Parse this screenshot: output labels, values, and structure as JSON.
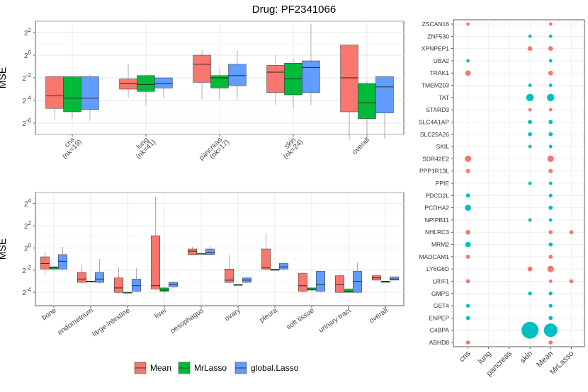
{
  "title": "Drug: PF2341066",
  "colors": {
    "Mean": "#F8766D",
    "MrLasso": "#00BA38",
    "global.Lasso": "#619CFF",
    "dot_red": "#F8766D",
    "dot_teal": "#00BFC4"
  },
  "legend": [
    {
      "label": "Mean",
      "color": "#F8766D"
    },
    {
      "label": "MrLasso",
      "color": "#00BA38"
    },
    {
      "label": "global.Lasso",
      "color": "#619CFF"
    }
  ],
  "chart_data": [
    {
      "type": "boxplot",
      "ylabel": "MSE",
      "yscale": "log2",
      "ylim_exp": [
        -7,
        3
      ],
      "yticks": [
        {
          "exp": -6,
          "label": "2-6"
        },
        {
          "exp": -4,
          "label": "2-4"
        },
        {
          "exp": -2,
          "label": "2-2"
        },
        {
          "exp": 0,
          "label": "20"
        },
        {
          "exp": 2,
          "label": "22"
        }
      ],
      "categories": [
        {
          "label": "cns",
          "sub": "(nk=19)"
        },
        {
          "label": "lung",
          "sub": "(nk=41)"
        },
        {
          "label": "pancreas",
          "sub": "(nk=17)"
        },
        {
          "label": "skin",
          "sub": "(nk=24)"
        },
        {
          "label": "overall",
          "sub": ""
        }
      ],
      "series": [
        {
          "name": "Mean",
          "boxes": [
            {
              "wlo": -5.7,
              "q1": -4.7,
              "med": -3.6,
              "q3": -1.9,
              "whi": -1.8
            },
            {
              "wlo": -3.8,
              "q1": -3.0,
              "med": -2.5,
              "q3": -2.1,
              "whi": -0.8
            },
            {
              "wlo": -3.9,
              "q1": -2.4,
              "med": -0.8,
              "q3": 0.0,
              "whi": 0.4
            },
            {
              "wlo": -4.4,
              "q1": -3.3,
              "med": -1.5,
              "q3": -0.9,
              "whi": 0.0
            },
            {
              "wlo": -7.5,
              "q1": -5.0,
              "med": -2.0,
              "q3": 0.9,
              "whi": 0.9
            }
          ]
        },
        {
          "name": "MrLasso",
          "boxes": [
            {
              "wlo": -5.6,
              "q1": -5.0,
              "med": -3.8,
              "q3": -1.9,
              "whi": -1.9
            },
            {
              "wlo": -4.4,
              "q1": -3.2,
              "med": -2.6,
              "q3": -1.8,
              "whi": -1.8
            },
            {
              "wlo": -3.9,
              "q1": -2.9,
              "med": -2.0,
              "q3": -1.8,
              "whi": -1.2
            },
            {
              "wlo": -4.7,
              "q1": -3.5,
              "med": -2.1,
              "q3": -0.7,
              "whi": -0.3
            },
            {
              "wlo": -7.4,
              "q1": -5.6,
              "med": -4.2,
              "q3": -2.5,
              "whi": -2.3
            }
          ]
        },
        {
          "name": "global.Lasso",
          "boxes": [
            {
              "wlo": -5.8,
              "q1": -4.8,
              "med": -3.8,
              "q3": -1.9,
              "whi": -1.7
            },
            {
              "wlo": -3.8,
              "q1": -2.9,
              "med": -2.5,
              "q3": -2.0,
              "whi": -2.0
            },
            {
              "wlo": -3.9,
              "q1": -2.7,
              "med": -1.8,
              "q3": -0.8,
              "whi": 0.4
            },
            {
              "wlo": -4.4,
              "q1": -3.3,
              "med": -1.1,
              "q3": -0.5,
              "whi": 2.8
            },
            {
              "wlo": -7.4,
              "q1": -5.1,
              "med": -2.8,
              "q3": -1.9,
              "whi": -1.9
            }
          ]
        }
      ]
    },
    {
      "type": "boxplot",
      "ylabel": "MSE",
      "yscale": "log2",
      "ylim_exp": [
        -5.2,
        5
      ],
      "yticks": [
        {
          "exp": -4,
          "label": "2-4"
        },
        {
          "exp": -2,
          "label": "2-2"
        },
        {
          "exp": 0,
          "label": "20"
        },
        {
          "exp": 2,
          "label": "22"
        },
        {
          "exp": 4,
          "label": "24"
        }
      ],
      "categories": [
        {
          "label": "bone",
          "sub": ""
        },
        {
          "label": "endometrium",
          "sub": ""
        },
        {
          "label": "large intestine",
          "sub": ""
        },
        {
          "label": "liver",
          "sub": ""
        },
        {
          "label": "oesophagus",
          "sub": ""
        },
        {
          "label": "ovary",
          "sub": ""
        },
        {
          "label": "pleura",
          "sub": ""
        },
        {
          "label": "soft tissue",
          "sub": ""
        },
        {
          "label": "urinary tract",
          "sub": ""
        },
        {
          "label": "overall",
          "sub": ""
        }
      ],
      "series": [
        {
          "name": "Mean",
          "boxes": [
            {
              "wlo": -2.4,
              "q1": -1.9,
              "med": -1.4,
              "q3": -0.8,
              "whi": -0.3
            },
            {
              "wlo": -3.2,
              "q1": -3.1,
              "med": -2.8,
              "q3": -2.2,
              "whi": -1.5
            },
            {
              "wlo": -4.1,
              "q1": -4.0,
              "med": -3.6,
              "q3": -2.7,
              "whi": -1.7
            },
            {
              "wlo": -3.8,
              "q1": -3.7,
              "med": -3.4,
              "q3": 1.1,
              "whi": 4.6
            },
            {
              "wlo": -0.6,
              "q1": -0.6,
              "med": -0.3,
              "q3": -0.1,
              "whi": 0.1
            },
            {
              "wlo": -3.2,
              "q1": -3.1,
              "med": -2.9,
              "q3": -1.9,
              "whi": -0.6
            },
            {
              "wlo": -2.0,
              "q1": -1.9,
              "med": -1.8,
              "q3": -0.1,
              "whi": 1.3
            },
            {
              "wlo": -4.0,
              "q1": -3.9,
              "med": -3.4,
              "q3": -2.3,
              "whi": -2.2
            },
            {
              "wlo": -4.1,
              "q1": -4.0,
              "med": -3.3,
              "q3": -2.5,
              "whi": -2.4
            },
            {
              "wlo": -2.9,
              "q1": -2.9,
              "med": -2.7,
              "q3": -2.5,
              "whi": -2.5
            }
          ]
        },
        {
          "name": "MrLasso",
          "boxes": [
            {
              "wlo": -2.0,
              "q1": -1.9,
              "med": -1.8,
              "q3": -1.7,
              "whi": -1.6
            },
            {
              "wlo": -3.0,
              "q1": -3.0,
              "med": -3.0,
              "q3": -3.0,
              "whi": -3.0
            },
            {
              "wlo": -4.0,
              "q1": -4.0,
              "med": -4.0,
              "q3": -4.0,
              "whi": -4.0
            },
            {
              "wlo": -4.1,
              "q1": -3.9,
              "med": -3.8,
              "q3": -3.6,
              "whi": -3.5
            },
            {
              "wlo": -0.5,
              "q1": -0.5,
              "med": -0.5,
              "q3": -0.5,
              "whi": -0.5
            },
            {
              "wlo": -3.3,
              "q1": -3.3,
              "med": -3.3,
              "q3": -3.3,
              "whi": -3.3
            },
            {
              "wlo": -2.0,
              "q1": -2.0,
              "med": -2.0,
              "q3": -1.9,
              "whi": -1.9
            },
            {
              "wlo": -3.8,
              "q1": -3.8,
              "med": -3.7,
              "q3": -3.6,
              "whi": -3.6
            },
            {
              "wlo": -4.0,
              "q1": -4.0,
              "med": -3.9,
              "q3": -3.7,
              "whi": -3.6
            },
            {
              "wlo": -3.1,
              "q1": -3.1,
              "med": -3.0,
              "q3": -3.0,
              "whi": -3.0
            }
          ]
        },
        {
          "name": "global.Lasso",
          "boxes": [
            {
              "wlo": -2.0,
              "q1": -1.9,
              "med": -1.2,
              "q3": -0.6,
              "whi": 0.1
            },
            {
              "wlo": -3.2,
              "q1": -3.1,
              "med": -2.8,
              "q3": -2.2,
              "whi": -1.0
            },
            {
              "wlo": -4.0,
              "q1": -3.9,
              "med": -3.4,
              "q3": -2.8,
              "whi": -1.8
            },
            {
              "wlo": -3.6,
              "q1": -3.5,
              "med": -3.3,
              "q3": -3.1,
              "whi": -3.0
            },
            {
              "wlo": -0.6,
              "q1": -0.6,
              "med": -0.4,
              "q3": -0.1,
              "whi": 0.2
            },
            {
              "wlo": -3.1,
              "q1": -3.1,
              "med": -2.9,
              "q3": -2.7,
              "whi": -2.6
            },
            {
              "wlo": -2.0,
              "q1": -1.9,
              "med": -1.7,
              "q3": -1.4,
              "whi": -1.3
            },
            {
              "wlo": -4.0,
              "q1": -3.9,
              "med": -3.3,
              "q3": -2.1,
              "whi": -2.1
            },
            {
              "wlo": -4.1,
              "q1": -4.0,
              "med": -3.0,
              "q3": -2.1,
              "whi": -1.3
            },
            {
              "wlo": -2.9,
              "q1": -2.9,
              "med": -2.8,
              "q3": -2.6,
              "whi": -2.6
            }
          ]
        }
      ]
    },
    {
      "type": "scatter",
      "subtype": "dot-matrix",
      "x_categories": [
        "cns",
        "lung",
        "pancreas",
        "skin",
        "Mean",
        "MrLasso"
      ],
      "genes": [
        "ZSCAN16",
        "ZNF530",
        "XPNPEP1",
        "UBA2",
        "TRAK1",
        "TMEM203",
        "TAT",
        "STARD3",
        "SLC4A1AP",
        "SLC25A26",
        "SKIL",
        "SDR42E2",
        "PPP1R13L",
        "PPIE",
        "PDCD2L",
        "PCDHA2",
        "NPIPB11",
        "NHLRC3",
        "MRM2",
        "MADCAM1",
        "LY6G6D",
        "LRIF1",
        "GMPS",
        "GET4",
        "ENPEP",
        "C4BPA",
        "ABHD8"
      ],
      "points": [
        {
          "gene": "ZSCAN16",
          "x": "cns",
          "size": 1,
          "color": "red"
        },
        {
          "gene": "ZSCAN16",
          "x": "Mean",
          "size": 1,
          "color": "red"
        },
        {
          "gene": "ZNF530",
          "x": "skin",
          "size": 1,
          "color": "teal"
        },
        {
          "gene": "ZNF530",
          "x": "Mean",
          "size": 1,
          "color": "teal"
        },
        {
          "gene": "XPNPEP1",
          "x": "skin",
          "size": 1.4,
          "color": "red"
        },
        {
          "gene": "XPNPEP1",
          "x": "Mean",
          "size": 1.4,
          "color": "red"
        },
        {
          "gene": "UBA2",
          "x": "cns",
          "size": 1,
          "color": "teal"
        },
        {
          "gene": "UBA2",
          "x": "Mean",
          "size": 1,
          "color": "teal"
        },
        {
          "gene": "TRAK1",
          "x": "cns",
          "size": 1.6,
          "color": "red"
        },
        {
          "gene": "TRAK1",
          "x": "Mean",
          "size": 1.4,
          "color": "red"
        },
        {
          "gene": "TMEM203",
          "x": "skin",
          "size": 1,
          "color": "teal"
        },
        {
          "gene": "TMEM203",
          "x": "Mean",
          "size": 1,
          "color": "teal"
        },
        {
          "gene": "TAT",
          "x": "skin",
          "size": 2.2,
          "color": "teal"
        },
        {
          "gene": "TAT",
          "x": "Mean",
          "size": 2.2,
          "color": "teal"
        },
        {
          "gene": "STARD3",
          "x": "skin",
          "size": 1,
          "color": "red"
        },
        {
          "gene": "STARD3",
          "x": "Mean",
          "size": 1,
          "color": "red"
        },
        {
          "gene": "SLC4A1AP",
          "x": "skin",
          "size": 1.2,
          "color": "teal"
        },
        {
          "gene": "SLC4A1AP",
          "x": "Mean",
          "size": 1.2,
          "color": "teal"
        },
        {
          "gene": "SLC25A26",
          "x": "skin",
          "size": 1.2,
          "color": "teal"
        },
        {
          "gene": "SLC25A26",
          "x": "Mean",
          "size": 1.2,
          "color": "teal"
        },
        {
          "gene": "SKIL",
          "x": "skin",
          "size": 1,
          "color": "teal"
        },
        {
          "gene": "SKIL",
          "x": "Mean",
          "size": 1,
          "color": "teal"
        },
        {
          "gene": "SDR42E2",
          "x": "cns",
          "size": 1.9,
          "color": "red"
        },
        {
          "gene": "SDR42E2",
          "x": "Mean",
          "size": 1.9,
          "color": "red"
        },
        {
          "gene": "PPP1R13L",
          "x": "cns",
          "size": 1.2,
          "color": "red"
        },
        {
          "gene": "PPP1R13L",
          "x": "Mean",
          "size": 1.2,
          "color": "red"
        },
        {
          "gene": "PPIE",
          "x": "skin",
          "size": 1,
          "color": "teal"
        },
        {
          "gene": "PPIE",
          "x": "Mean",
          "size": 1,
          "color": "teal"
        },
        {
          "gene": "PDCD2L",
          "x": "cns",
          "size": 1.2,
          "color": "teal"
        },
        {
          "gene": "PDCD2L",
          "x": "Mean",
          "size": 1.1,
          "color": "teal"
        },
        {
          "gene": "PCDHA2",
          "x": "cns",
          "size": 1.8,
          "color": "teal"
        },
        {
          "gene": "PCDHA2",
          "x": "Mean",
          "size": 1.2,
          "color": "teal"
        },
        {
          "gene": "NPIPB11",
          "x": "skin",
          "size": 1,
          "color": "teal"
        },
        {
          "gene": "NPIPB11",
          "x": "Mean",
          "size": 1,
          "color": "teal"
        },
        {
          "gene": "NHLRC3",
          "x": "cns",
          "size": 1.4,
          "color": "red"
        },
        {
          "gene": "NHLRC3",
          "x": "Mean",
          "size": 1.2,
          "color": "red"
        },
        {
          "gene": "NHLRC3",
          "x": "MrLasso",
          "size": 1.2,
          "color": "red"
        },
        {
          "gene": "MRM2",
          "x": "cns",
          "size": 1.6,
          "color": "teal"
        },
        {
          "gene": "MRM2",
          "x": "Mean",
          "size": 1.2,
          "color": "teal"
        },
        {
          "gene": "MADCAM1",
          "x": "cns",
          "size": 1.2,
          "color": "red"
        },
        {
          "gene": "MADCAM1",
          "x": "Mean",
          "size": 1.2,
          "color": "red"
        },
        {
          "gene": "LY6G6D",
          "x": "skin",
          "size": 1.4,
          "color": "red"
        },
        {
          "gene": "LY6G6D",
          "x": "Mean",
          "size": 1.9,
          "color": "red"
        },
        {
          "gene": "LRIF1",
          "x": "cns",
          "size": 1.2,
          "color": "red"
        },
        {
          "gene": "LRIF1",
          "x": "Mean",
          "size": 1,
          "color": "red"
        },
        {
          "gene": "LRIF1",
          "x": "MrLasso",
          "size": 1.2,
          "color": "red"
        },
        {
          "gene": "GMPS",
          "x": "skin",
          "size": 1.1,
          "color": "teal"
        },
        {
          "gene": "GMPS",
          "x": "Mean",
          "size": 1.1,
          "color": "teal"
        },
        {
          "gene": "GET4",
          "x": "cns",
          "size": 1.1,
          "color": "teal"
        },
        {
          "gene": "GET4",
          "x": "Mean",
          "size": 1.1,
          "color": "teal"
        },
        {
          "gene": "ENPEP",
          "x": "cns",
          "size": 1.2,
          "color": "teal"
        },
        {
          "gene": "ENPEP",
          "x": "Mean",
          "size": 1.2,
          "color": "teal"
        },
        {
          "gene": "C4BPA",
          "x": "skin",
          "size": 5,
          "color": "teal"
        },
        {
          "gene": "C4BPA",
          "x": "Mean",
          "size": 4,
          "color": "teal"
        },
        {
          "gene": "ABHD8",
          "x": "cns",
          "size": 1.2,
          "color": "red"
        },
        {
          "gene": "ABHD8",
          "x": "Mean",
          "size": 1.2,
          "color": "red"
        }
      ]
    }
  ]
}
